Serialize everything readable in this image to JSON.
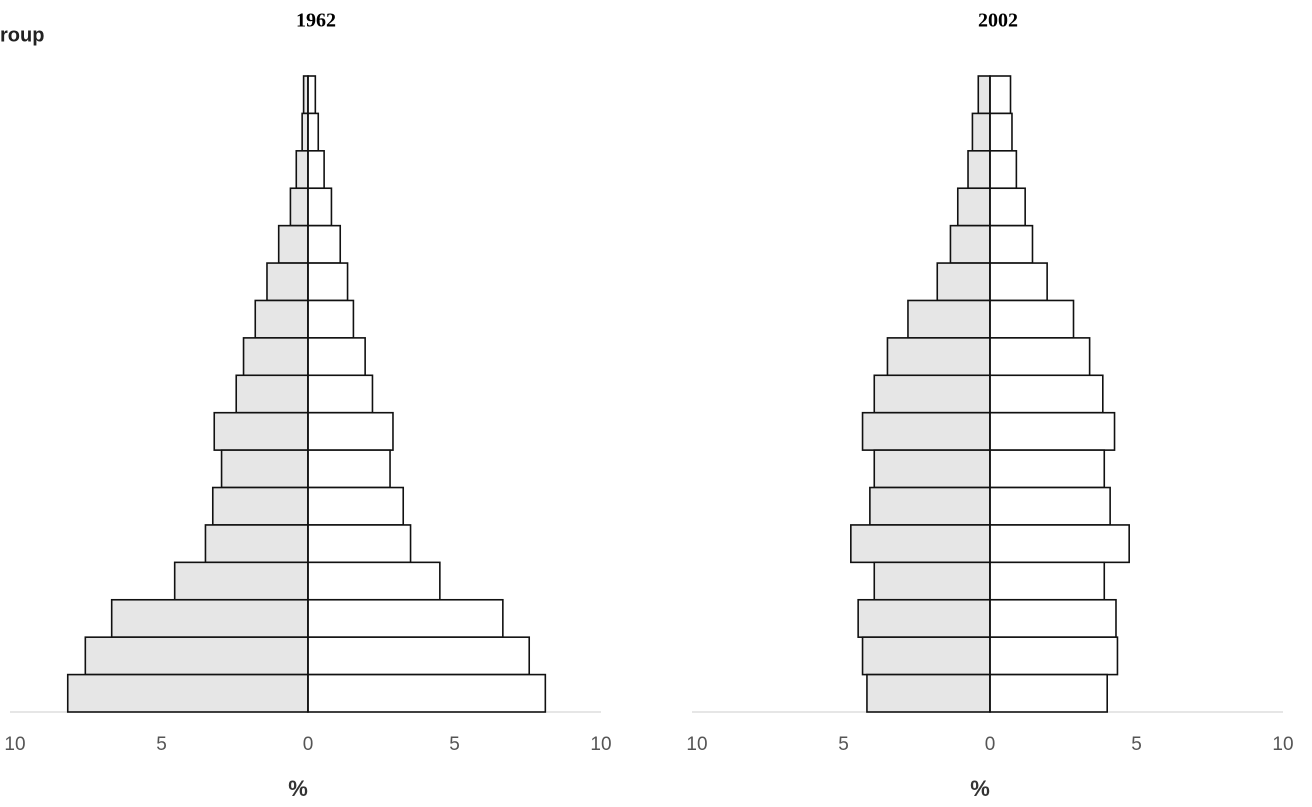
{
  "chart_data": [
    {
      "type": "pyramid",
      "title": "1962",
      "ylabel": "roup",
      "xlabel": "%",
      "xlim": [
        -10,
        10
      ],
      "xticks": [
        {
          "value": -10,
          "label": "10"
        },
        {
          "value": -5,
          "label": "5"
        },
        0,
        5,
        10
      ],
      "series": [
        {
          "side": "left",
          "color": "#e6e6e6",
          "values": [
            0.15,
            0.2,
            0.4,
            0.6,
            1.0,
            1.4,
            1.8,
            2.2,
            2.45,
            3.2,
            2.95,
            3.25,
            3.5,
            4.55,
            6.7,
            7.6,
            8.2
          ]
        },
        {
          "side": "right",
          "color": "#ffffff",
          "values": [
            0.25,
            0.35,
            0.55,
            0.8,
            1.1,
            1.35,
            1.55,
            1.95,
            2.2,
            2.9,
            2.8,
            3.25,
            3.5,
            4.5,
            6.65,
            7.55,
            8.1
          ]
        }
      ]
    },
    {
      "type": "pyramid",
      "title": "2002",
      "xlabel": "%",
      "xlim": [
        -10,
        10
      ],
      "xticks": [
        {
          "value": -10,
          "label": "10"
        },
        {
          "value": -5,
          "label": "5"
        },
        0,
        5,
        10
      ],
      "series": [
        {
          "side": "left",
          "color": "#e6e6e6",
          "values": [
            0.4,
            0.6,
            0.75,
            1.1,
            1.35,
            1.8,
            2.8,
            3.5,
            3.95,
            4.35,
            3.95,
            4.1,
            4.75,
            3.95,
            4.5,
            4.35,
            4.2
          ]
        },
        {
          "side": "right",
          "color": "#ffffff",
          "values": [
            0.7,
            0.75,
            0.9,
            1.2,
            1.45,
            1.95,
            2.85,
            3.4,
            3.85,
            4.25,
            3.9,
            4.1,
            4.75,
            3.9,
            4.3,
            4.35,
            4.0
          ]
        }
      ]
    }
  ]
}
